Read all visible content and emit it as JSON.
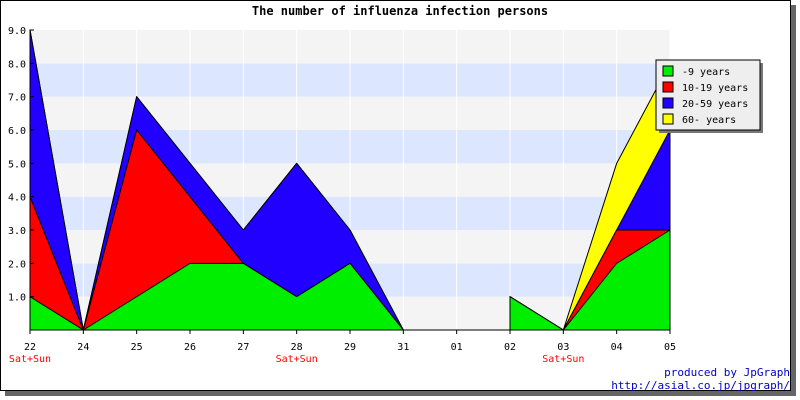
{
  "chart_data": {
    "type": "area",
    "stacked": true,
    "title": "The number of influenza infection persons",
    "categories": [
      "22",
      "24",
      "25",
      "26",
      "27",
      "28",
      "29",
      "31",
      "01",
      "02",
      "03",
      "04",
      "05"
    ],
    "category_notes": [
      "Sat+Sun",
      "",
      "",
      "",
      "",
      "Sat+Sun",
      "",
      "",
      "",
      "",
      "Sat+Sun",
      "",
      ""
    ],
    "series": [
      {
        "name": "-9 years",
        "color": "#00ee00",
        "values": [
          1,
          0,
          1,
          2,
          2,
          1,
          2,
          0,
          null,
          1,
          0,
          2,
          3
        ]
      },
      {
        "name": "10-19 years",
        "color": "#ff0000",
        "values": [
          3,
          0,
          5,
          2,
          0,
          0,
          0,
          0,
          null,
          0,
          0,
          1,
          0
        ]
      },
      {
        "name": "20-59 years",
        "color": "#2200ff",
        "values": [
          5,
          0,
          1,
          1,
          1,
          4,
          1,
          0,
          null,
          0,
          0,
          0,
          3
        ]
      },
      {
        "name": "60- years",
        "color": "#ffff00",
        "values": [
          0,
          0,
          0,
          0,
          0,
          0,
          0,
          0,
          null,
          0,
          0,
          2,
          2
        ]
      }
    ],
    "ylim": [
      0,
      9
    ],
    "yticks": [
      "1.0",
      "2.0",
      "3.0",
      "4.0",
      "5.0",
      "6.0",
      "7.0",
      "8.0",
      "9.0"
    ],
    "grid": "alternating horizontal bands",
    "legend_position": "top-right",
    "band_colors": [
      "#f4f4f4",
      "#dde6ff"
    ],
    "note_color": "#ff0000",
    "outline_color": "#000000"
  },
  "credits": {
    "line1": "produced by JpGraph",
    "line2": "http://asial.co.jp/jpgraph/"
  }
}
